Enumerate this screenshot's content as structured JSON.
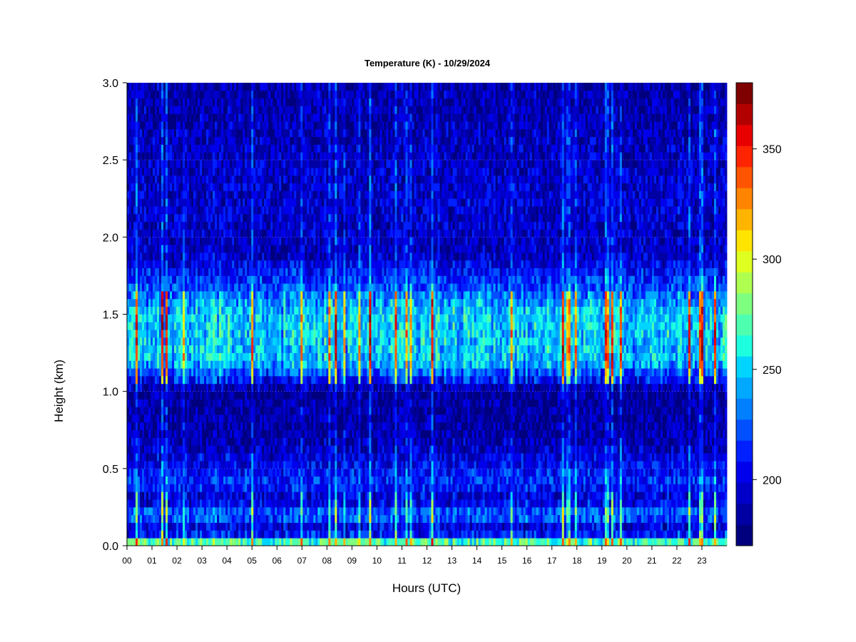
{
  "chart_data": {
    "type": "heatmap",
    "title": "Temperature (K) - 10/29/2024",
    "xlabel": "Hours (UTC)",
    "ylabel": "Height (km)",
    "xlim": [
      0,
      24
    ],
    "ylim": [
      0.0,
      3.0
    ],
    "x_ticks": [
      "00",
      "01",
      "02",
      "03",
      "04",
      "05",
      "06",
      "07",
      "08",
      "09",
      "10",
      "11",
      "12",
      "13",
      "14",
      "15",
      "16",
      "17",
      "18",
      "19",
      "20",
      "21",
      "22",
      "23"
    ],
    "y_ticks": [
      "0.0",
      "0.5",
      "1.0",
      "1.5",
      "2.0",
      "2.5",
      "3.0"
    ],
    "y_tick_values": [
      0.0,
      0.5,
      1.0,
      1.5,
      2.0,
      2.5,
      3.0
    ],
    "colorbar": {
      "min": 170,
      "max": 380,
      "tick_labels": [
        "200",
        "250",
        "300",
        "350"
      ],
      "tick_values": [
        200,
        250,
        300,
        350
      ],
      "colors": [
        "#00007f",
        "#0000a3",
        "#0000c8",
        "#0000ec",
        "#0020ff",
        "#0050ff",
        "#0080ff",
        "#00a8ff",
        "#00d4ff",
        "#1effe0",
        "#4effb0",
        "#7eff80",
        "#aeff50",
        "#deff20",
        "#ffe400",
        "#ffb400",
        "#ff8400",
        "#ff5400",
        "#ff2400",
        "#e80000",
        "#b20000",
        "#7f0000"
      ]
    },
    "height_profile_K": [
      {
        "height_km": 0.0,
        "temperature_K": 300
      },
      {
        "height_km": 0.05,
        "temperature_K": 230
      },
      {
        "height_km": 0.1,
        "temperature_K": 185
      },
      {
        "height_km": 0.2,
        "temperature_K": 230
      },
      {
        "height_km": 0.3,
        "temperature_K": 190
      },
      {
        "height_km": 0.4,
        "temperature_K": 215
      },
      {
        "height_km": 0.7,
        "temperature_K": 185
      },
      {
        "height_km": 1.0,
        "temperature_K": 180
      },
      {
        "height_km": 1.2,
        "temperature_K": 245
      },
      {
        "height_km": 1.5,
        "temperature_K": 245
      },
      {
        "height_km": 1.9,
        "temperature_K": 190
      },
      {
        "height_km": 2.2,
        "temperature_K": 195
      },
      {
        "height_km": 3.0,
        "temperature_K": 185
      }
    ]
  }
}
